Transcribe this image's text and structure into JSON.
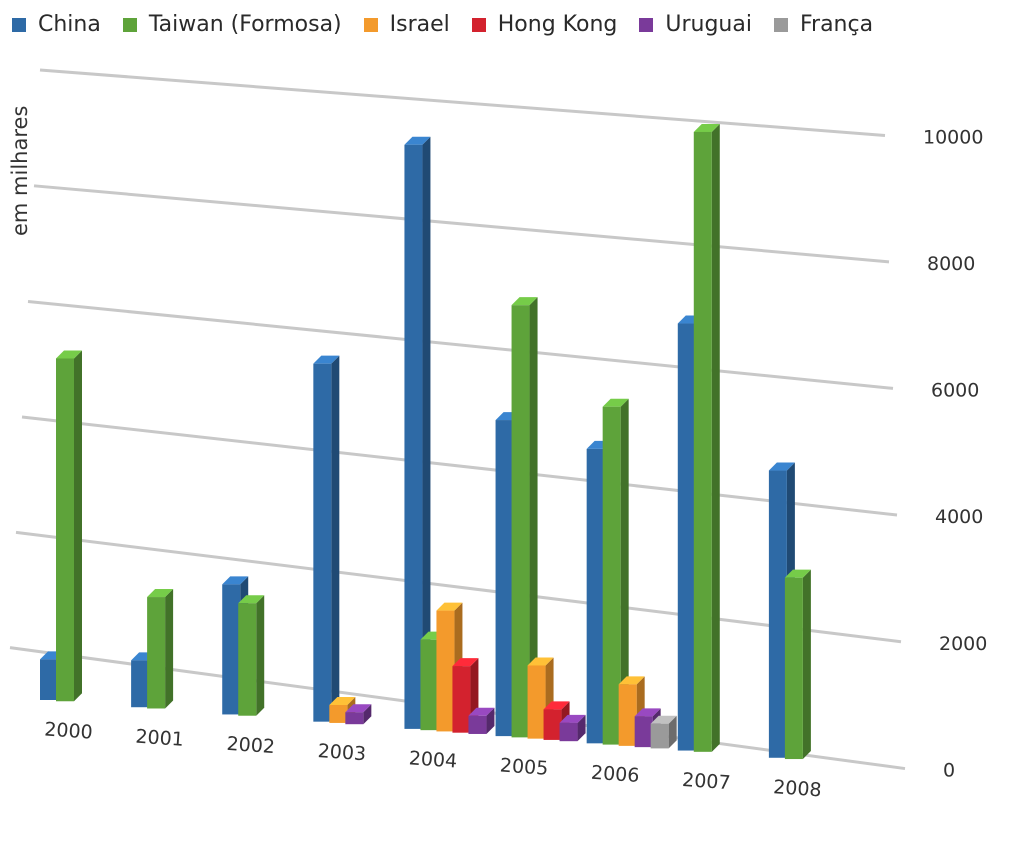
{
  "chart_data": {
    "type": "bar",
    "title": "",
    "ylabel": "em milhares",
    "ylim": [
      0,
      10000
    ],
    "yticks": [
      "0",
      "2000",
      "4000",
      "6000",
      "8000",
      "10000"
    ],
    "categories": [
      "2000",
      "2001",
      "2002",
      "2003",
      "2004",
      "2005",
      "2006",
      "2007",
      "2008"
    ],
    "series": [
      {
        "name": "China",
        "color": "#2e6aa6",
        "values": [
          700,
          800,
          2200,
          6000,
          9700,
          5200,
          4800,
          6900,
          4600
        ]
      },
      {
        "name": "Taiwan (Formosa)",
        "color": "#5ea33a",
        "values": [
          5900,
          1900,
          1900,
          null,
          1500,
          7100,
          5500,
          10000,
          2900
        ]
      },
      {
        "name": "Israel",
        "color": "#f39a2c",
        "values": [
          null,
          null,
          null,
          300,
          2000,
          1200,
          1000,
          null,
          null
        ]
      },
      {
        "name": "Hong Kong",
        "color": "#d3222e",
        "values": [
          null,
          null,
          null,
          null,
          1100,
          500,
          null,
          null,
          null
        ]
      },
      {
        "name": "Uruguai",
        "color": "#7a3a9a",
        "values": [
          null,
          null,
          null,
          200,
          300,
          300,
          500,
          null,
          null
        ]
      },
      {
        "name": "França",
        "color": "#9a9a9a",
        "values": [
          null,
          null,
          null,
          null,
          null,
          null,
          400,
          null,
          null
        ]
      }
    ],
    "grid": true,
    "legend_position": "top"
  }
}
